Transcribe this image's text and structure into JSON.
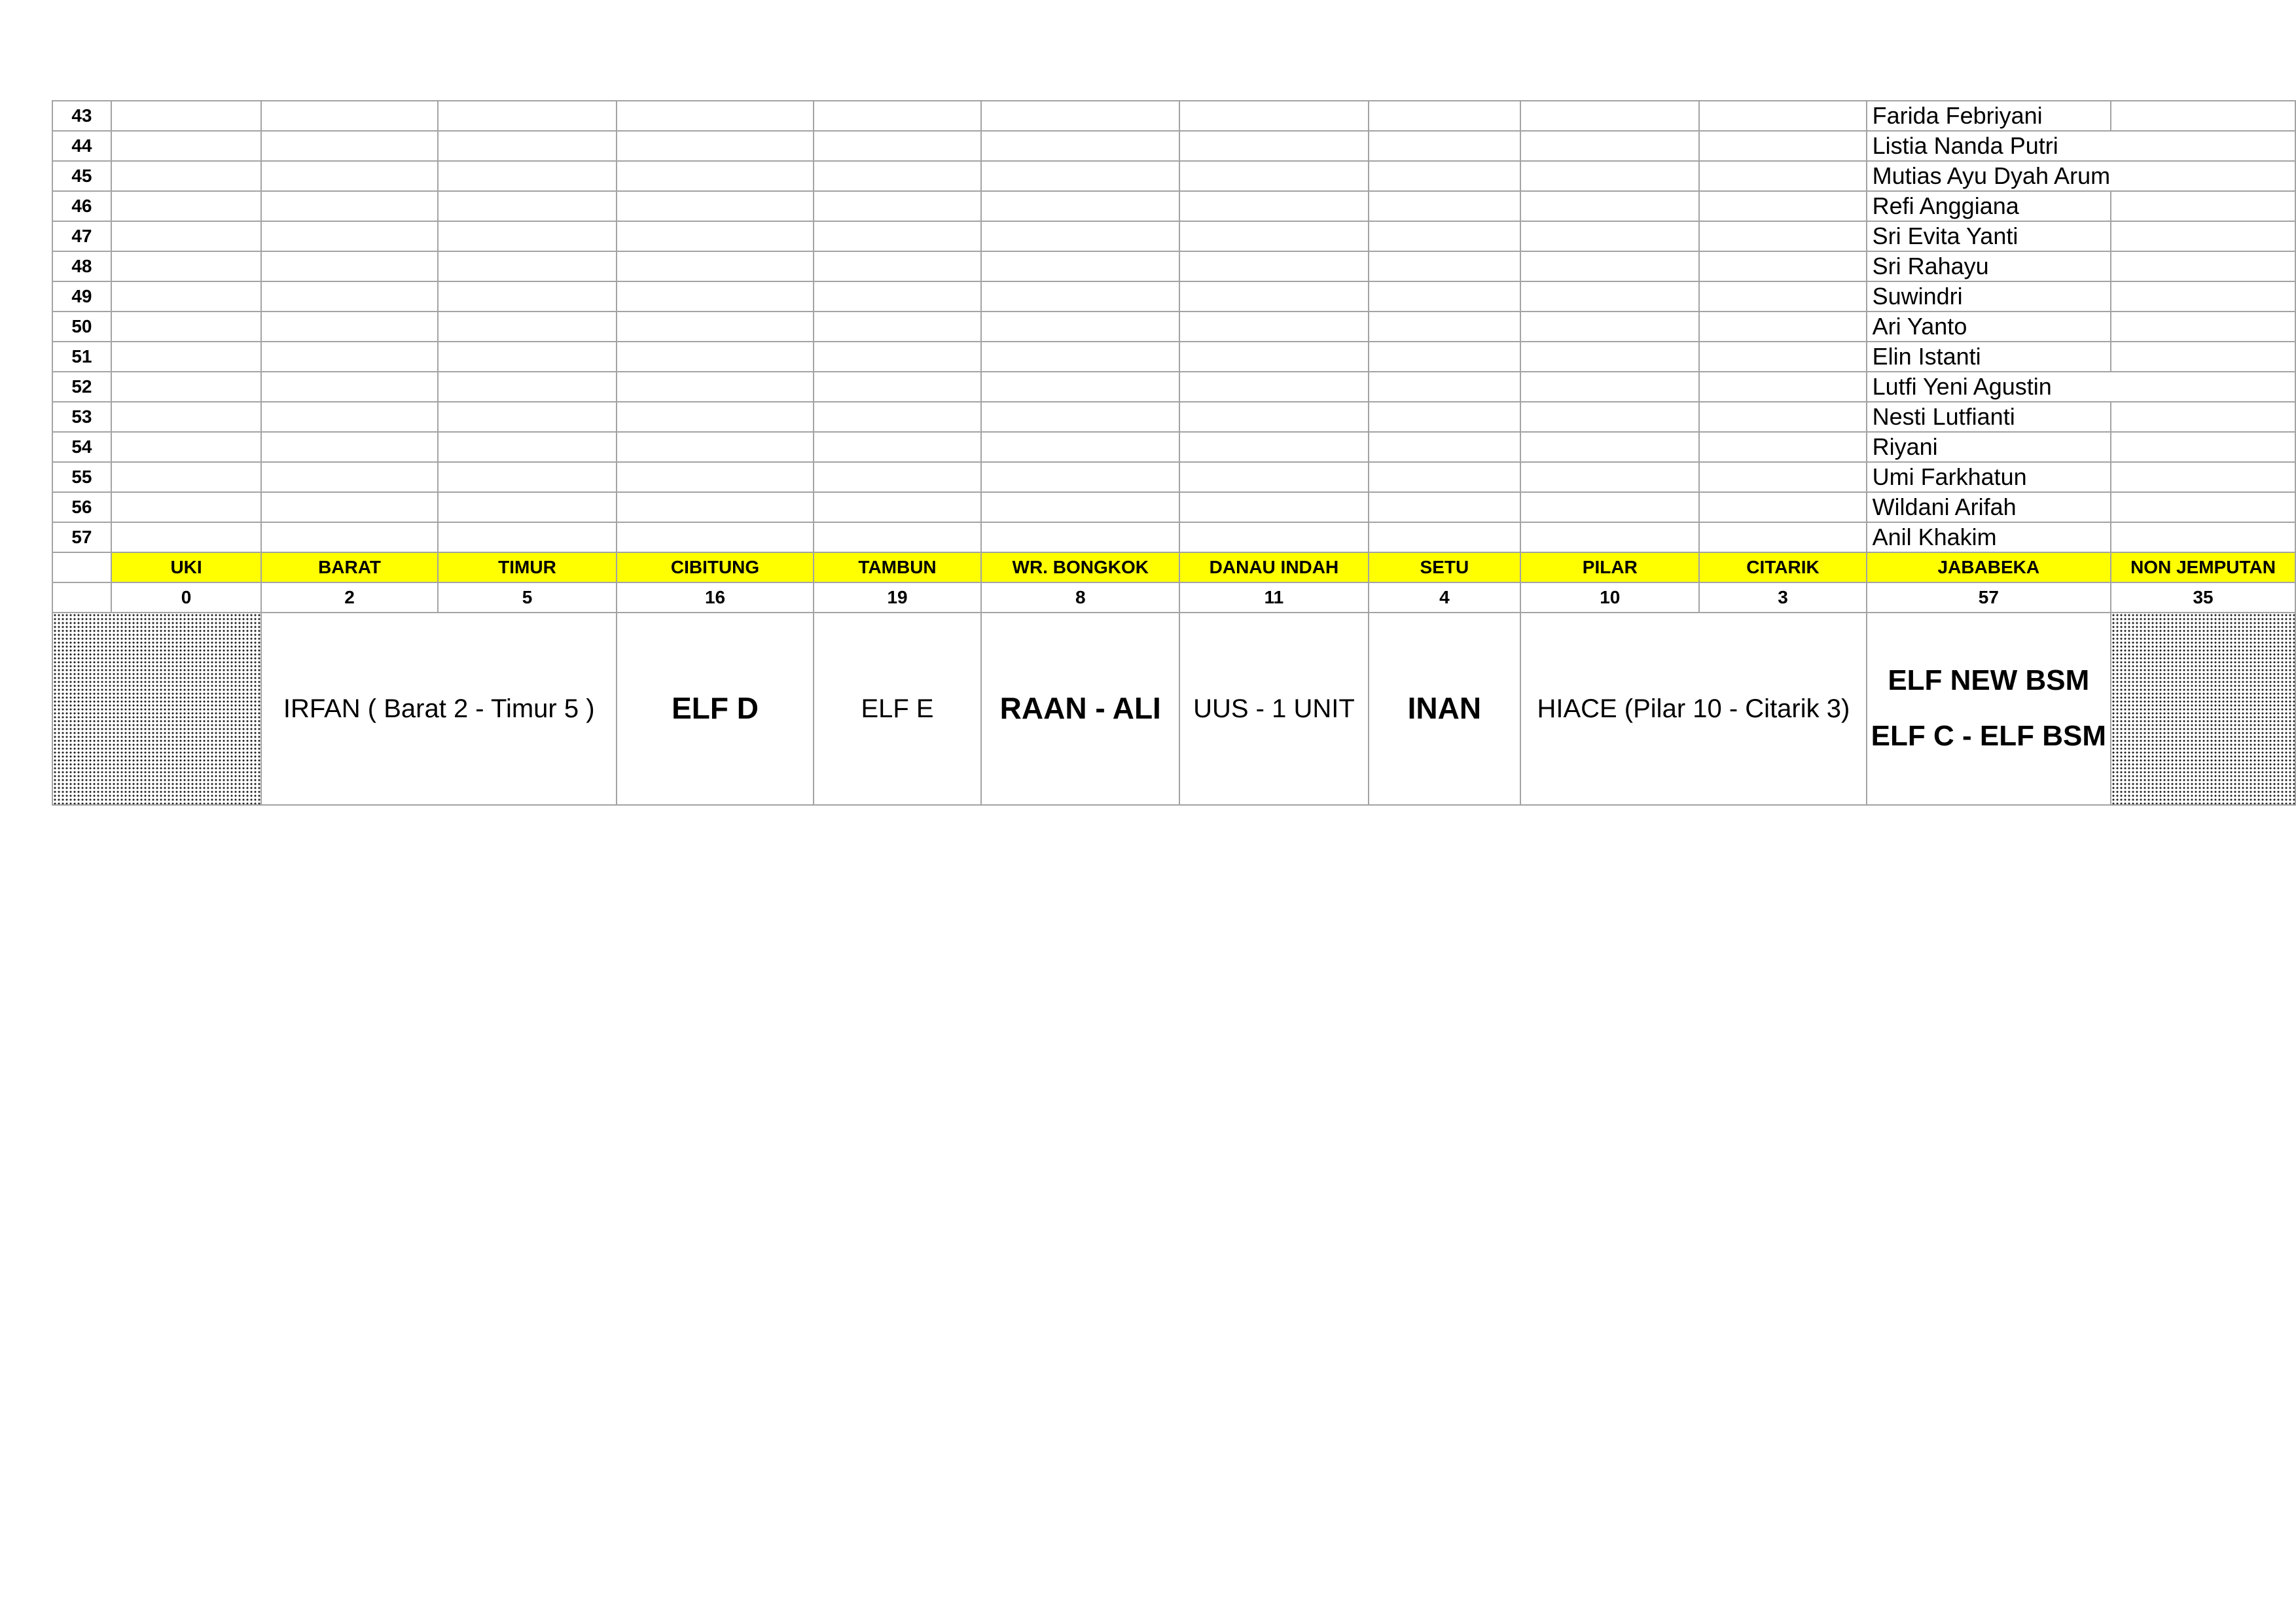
{
  "rows": [
    {
      "no": "43",
      "name": "Farida Febriyani"
    },
    {
      "no": "44",
      "name": "Listia Nanda Putri"
    },
    {
      "no": "45",
      "name": "Mutias Ayu Dyah Arum"
    },
    {
      "no": "46",
      "name": "Refi Anggiana"
    },
    {
      "no": "47",
      "name": "Sri Evita Yanti"
    },
    {
      "no": "48",
      "name": "Sri Rahayu"
    },
    {
      "no": "49",
      "name": "Suwindri"
    },
    {
      "no": "50",
      "name": "Ari Yanto"
    },
    {
      "no": "51",
      "name": "Elin Istanti"
    },
    {
      "no": "52",
      "name": "Lutfi Yeni Agustin"
    },
    {
      "no": "53",
      "name": "Nesti Lutfianti"
    },
    {
      "no": "54",
      "name": "Riyani"
    },
    {
      "no": "55",
      "name": "Umi Farkhatun"
    },
    {
      "no": "56",
      "name": "Wildani Arifah"
    },
    {
      "no": "57",
      "name": "Anil Khakim"
    }
  ],
  "routes": [
    "UKI",
    "BARAT",
    "TIMUR",
    "CIBITUNG",
    "TAMBUN",
    "WR. BONGKOK",
    "DANAU INDAH",
    "SETU",
    "PILAR",
    "CITARIK",
    "JABABEKA",
    "NON JEMPUTAN"
  ],
  "counts": [
    "0",
    "2",
    "5",
    "16",
    "19",
    "8",
    "11",
    "4",
    "10",
    "3",
    "57",
    "35"
  ],
  "vehicles": {
    "barat_timur": "IRFAN ( Barat 2 - Timur 5 )",
    "cibitung": "ELF D",
    "tambun": "ELF E",
    "wr_bongkok": "RAAN - ALI",
    "danau_indah": "UUS - 1 UNIT",
    "setu": "INAN",
    "pilar_citarik": "HIACE (Pilar 10 - Citarik 3)",
    "jababeka_line1": "ELF NEW BSM",
    "jababeka_line2": "ELF C - ELF BSM"
  },
  "colors": {
    "header_fill": "#ffff00",
    "grid_line": "#a3a3a3"
  }
}
